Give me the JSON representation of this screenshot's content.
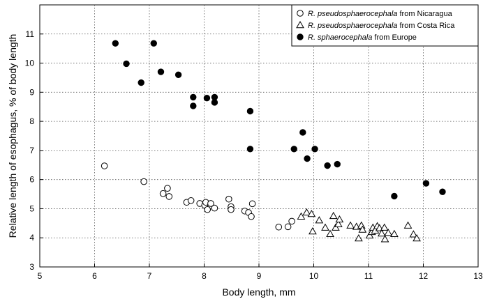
{
  "chart_data": {
    "type": "scatter",
    "xlabel": "Body length, mm",
    "ylabel": "Relative length of esophagus, % of body length",
    "xlim": [
      5,
      13
    ],
    "ylim": [
      3,
      12
    ],
    "x_ticks": [
      "5",
      "6",
      "7",
      "8",
      "9",
      "10",
      "11",
      "12",
      "13"
    ],
    "y_ticks": [
      "3",
      "4",
      "5",
      "6",
      "7",
      "8",
      "9",
      "10",
      "11"
    ],
    "grid": "dotted",
    "legend_position": "top-right",
    "series": [
      {
        "name_italic": "R. pseudosphaerocephala",
        "name_rest": " from Nicaragua",
        "marker": "open-circle",
        "points": [
          [
            6.18,
            6.47
          ],
          [
            6.9,
            5.93
          ],
          [
            7.25,
            5.52
          ],
          [
            7.33,
            5.7
          ],
          [
            7.36,
            5.42
          ],
          [
            7.68,
            5.22
          ],
          [
            7.76,
            5.28
          ],
          [
            7.92,
            5.18
          ],
          [
            8.01,
            5.12
          ],
          [
            8.03,
            5.22
          ],
          [
            8.06,
            4.97
          ],
          [
            8.12,
            5.18
          ],
          [
            8.19,
            5.02
          ],
          [
            8.45,
            5.33
          ],
          [
            8.49,
            5.07
          ],
          [
            8.49,
            4.97
          ],
          [
            8.74,
            4.92
          ],
          [
            8.81,
            4.87
          ],
          [
            8.86,
            4.73
          ],
          [
            8.88,
            5.17
          ],
          [
            9.36,
            4.37
          ],
          [
            9.53,
            4.38
          ],
          [
            9.6,
            4.57
          ]
        ]
      },
      {
        "name_italic": "R. pseudosphaerocephala",
        "name_rest": " from Costa Rica",
        "marker": "open-triangle",
        "points": [
          [
            9.77,
            4.73
          ],
          [
            9.87,
            4.87
          ],
          [
            9.96,
            4.82
          ],
          [
            9.98,
            4.22
          ],
          [
            10.1,
            4.6
          ],
          [
            10.21,
            4.35
          ],
          [
            10.3,
            4.13
          ],
          [
            10.36,
            4.75
          ],
          [
            10.4,
            4.35
          ],
          [
            10.45,
            4.47
          ],
          [
            10.47,
            4.63
          ],
          [
            10.67,
            4.42
          ],
          [
            10.78,
            4.38
          ],
          [
            10.82,
            3.98
          ],
          [
            10.87,
            4.42
          ],
          [
            10.89,
            4.28
          ],
          [
            11.02,
            4.08
          ],
          [
            11.06,
            4.2
          ],
          [
            11.08,
            4.35
          ],
          [
            11.12,
            4.25
          ],
          [
            11.16,
            4.4
          ],
          [
            11.2,
            4.33
          ],
          [
            11.24,
            4.15
          ],
          [
            11.29,
            4.35
          ],
          [
            11.3,
            3.95
          ],
          [
            11.36,
            4.17
          ],
          [
            11.47,
            4.13
          ],
          [
            11.72,
            4.42
          ],
          [
            11.82,
            4.12
          ],
          [
            11.88,
            3.98
          ]
        ]
      },
      {
        "name_italic": "R. sphaerocephala",
        "name_rest": " from Europe",
        "marker": "filled-circle",
        "points": [
          [
            6.38,
            10.68
          ],
          [
            6.58,
            9.98
          ],
          [
            6.85,
            9.33
          ],
          [
            7.08,
            10.68
          ],
          [
            7.21,
            9.7
          ],
          [
            7.53,
            9.6
          ],
          [
            7.8,
            8.83
          ],
          [
            7.8,
            8.53
          ],
          [
            8.05,
            8.8
          ],
          [
            8.19,
            8.83
          ],
          [
            8.19,
            8.65
          ],
          [
            8.84,
            8.35
          ],
          [
            8.84,
            7.05
          ],
          [
            9.64,
            7.05
          ],
          [
            9.8,
            7.62
          ],
          [
            9.88,
            6.72
          ],
          [
            10.02,
            7.05
          ],
          [
            10.25,
            6.48
          ],
          [
            10.43,
            6.53
          ],
          [
            11.47,
            5.43
          ],
          [
            12.05,
            5.87
          ],
          [
            12.35,
            5.58
          ]
        ]
      }
    ]
  }
}
